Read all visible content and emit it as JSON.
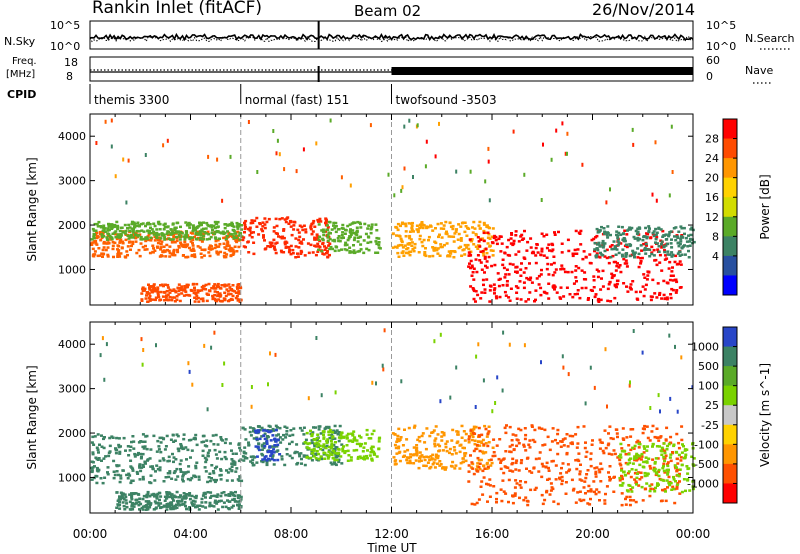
{
  "header": {
    "title": "Rankin Inlet (fitACF)",
    "beam": "Beam 02",
    "date": "26/Nov/2014"
  },
  "noise_panel": {
    "left_label": "N.Sky",
    "right_label": "N.Search",
    "left_ticks": [
      "10^5",
      "10^0"
    ],
    "right_ticks": [
      "10^5",
      "10^0"
    ]
  },
  "freq_panel": {
    "left_label_1": "Freq.",
    "left_label_2": "[MHz]",
    "right_label": "Nave",
    "left_ticks": [
      "18",
      "8"
    ],
    "right_ticks": [
      "60",
      "0"
    ]
  },
  "cpid": {
    "label": "CPID",
    "segments": [
      {
        "name": "themis 3300",
        "start_h": 0,
        "end_h": 6
      },
      {
        "name": "normal (fast) 151",
        "start_h": 6,
        "end_h": 12
      },
      {
        "name": "twofsound -3503",
        "start_h": 12,
        "end_h": 24
      }
    ]
  },
  "x_axis": {
    "label": "Time UT",
    "range_h": [
      0,
      24
    ],
    "ticks": [
      "00:00",
      "04:00",
      "08:00",
      "12:00",
      "16:00",
      "20:00",
      "00:00"
    ]
  },
  "chart_data": [
    {
      "type": "heatmap",
      "name": "power-panel",
      "ylabel": "Slant Range [km]",
      "xlim_h": [
        0,
        24
      ],
      "ylim_km": [
        200,
        4500
      ],
      "y_ticks": [
        1000,
        2000,
        3000,
        4000
      ],
      "colorbar": {
        "label": "Power [dB]",
        "ticks": [
          "28",
          "24",
          "20",
          "16",
          "12",
          "8",
          "4"
        ],
        "colors": [
          "#ff0000",
          "#ff4b00",
          "#ff9600",
          "#ffd200",
          "#d2dc00",
          "#5aaa28",
          "#3c8264",
          "#2850a0",
          "#0000ff"
        ]
      },
      "scatter_regions": [
        {
          "t": [
            0.0,
            6.0
          ],
          "r": [
            1300,
            1900
          ],
          "color": "#ff6000"
        },
        {
          "t": [
            0.0,
            6.0
          ],
          "r": [
            1700,
            2100
          ],
          "color": "#5aaa28"
        },
        {
          "t": [
            2.0,
            6.0
          ],
          "r": [
            300,
            700
          ],
          "color": "#ff4b00"
        },
        {
          "t": [
            6.0,
            9.5
          ],
          "r": [
            1300,
            2200
          ],
          "color": "#ff2800"
        },
        {
          "t": [
            9.0,
            11.5
          ],
          "r": [
            1400,
            2100
          ],
          "color": "#5aaa28"
        },
        {
          "t": [
            12.0,
            16.0
          ],
          "r": [
            1300,
            2100
          ],
          "color": "#ffa000"
        },
        {
          "t": [
            15.0,
            23.5
          ],
          "r": [
            300,
            1900
          ],
          "color": "#ff0000"
        },
        {
          "t": [
            20.0,
            24.0
          ],
          "r": [
            1300,
            2000
          ],
          "color": "#3c8264"
        }
      ]
    },
    {
      "type": "heatmap",
      "name": "velocity-panel",
      "ylabel": "Slant Range [km]",
      "xlim_h": [
        0,
        24
      ],
      "ylim_km": [
        200,
        4500
      ],
      "y_ticks": [
        1000,
        2000,
        3000,
        4000
      ],
      "colorbar": {
        "label": "Velocity [m s^-1]",
        "ticks": [
          "1000",
          "500",
          "100",
          "25",
          "-25",
          "-100",
          "-500",
          "-1000"
        ],
        "colors": [
          "#2846c8",
          "#3c8264",
          "#5aaa28",
          "#7ad200",
          "#c8c8c8",
          "#ffd200",
          "#ff9600",
          "#ff5000",
          "#ff0000"
        ]
      },
      "scatter_regions": [
        {
          "t": [
            0.0,
            6.0
          ],
          "r": [
            900,
            2000
          ],
          "color": "#3c8264"
        },
        {
          "t": [
            6.0,
            10.0
          ],
          "r": [
            1300,
            2200
          ],
          "color": "#3c8264"
        },
        {
          "t": [
            6.5,
            7.5
          ],
          "r": [
            1400,
            2100
          ],
          "color": "#2846c8"
        },
        {
          "t": [
            8.5,
            11.5
          ],
          "r": [
            1400,
            2100
          ],
          "color": "#7ad200"
        },
        {
          "t": [
            12.0,
            16.0
          ],
          "r": [
            1200,
            2200
          ],
          "color": "#ff9600"
        },
        {
          "t": [
            15.0,
            23.5
          ],
          "r": [
            400,
            2200
          ],
          "color": "#ff5000"
        },
        {
          "t": [
            21.0,
            24.0
          ],
          "r": [
            700,
            1800
          ],
          "color": "#7ad200"
        },
        {
          "t": [
            1.0,
            6.0
          ],
          "r": [
            300,
            700
          ],
          "color": "#3c8264"
        }
      ]
    }
  ]
}
